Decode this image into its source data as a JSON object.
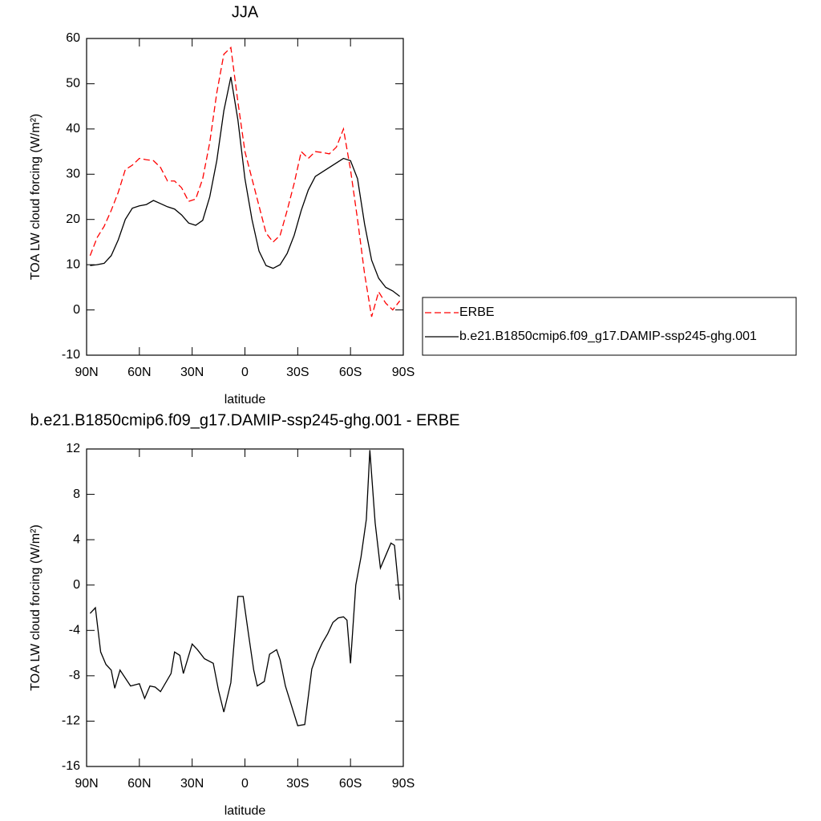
{
  "chart_data": [
    {
      "type": "line",
      "title": "JJA",
      "xlabel": "latitude",
      "ylabel": "TOA LW cloud forcing (W/m²)",
      "xlim": [
        90,
        -90
      ],
      "xticks": [
        {
          "value": 90,
          "label": "90N"
        },
        {
          "value": 60,
          "label": "60N"
        },
        {
          "value": 30,
          "label": "30N"
        },
        0,
        {
          "value": -30,
          "label": "30S"
        },
        {
          "value": -60,
          "label": "60S"
        },
        {
          "value": -90,
          "label": "90S"
        }
      ],
      "ylim": [
        -10,
        60
      ],
      "yticks": [
        -10,
        0,
        10,
        20,
        30,
        40,
        50,
        60
      ],
      "legend": "right",
      "x": [
        88,
        84,
        80,
        76,
        72,
        68,
        64,
        60,
        56,
        52,
        48,
        44,
        40,
        36,
        32,
        28,
        24,
        20,
        16,
        12,
        8,
        4,
        0,
        -4,
        -8,
        -12,
        -16,
        -20,
        -24,
        -28,
        -32,
        -36,
        -40,
        -44,
        -48,
        -52,
        -56,
        -60,
        -64,
        -68,
        -72,
        -76,
        -80,
        -84,
        -88
      ],
      "series": [
        {
          "name": "ERBE",
          "color": "#ff0000",
          "linestyle": "dashed",
          "values": [
            12,
            16,
            18.5,
            22,
            26,
            31,
            32,
            33.5,
            33.2,
            33,
            31.5,
            28.5,
            28.5,
            27,
            24,
            24.5,
            29,
            37,
            48,
            56.5,
            58,
            46,
            35,
            29,
            23,
            17,
            15,
            16.5,
            22,
            28,
            35,
            33.5,
            35,
            34.8,
            34.5,
            36,
            40,
            31,
            20,
            8,
            -1.5,
            4,
            1.5,
            0,
            2
          ]
        },
        {
          "name": "b.e21.B1850cmip6.f09_g17.DAMIP-ssp245-ghg.001",
          "color": "#000000",
          "linestyle": "solid",
          "values": [
            9.8,
            10,
            10.3,
            12,
            15.5,
            20,
            22.5,
            23,
            23.3,
            24.2,
            23.5,
            22.8,
            22.3,
            21,
            19.2,
            18.7,
            19.8,
            25,
            33,
            44,
            51.5,
            42,
            29,
            20,
            13,
            9.8,
            9.2,
            10,
            12.5,
            16.5,
            22,
            26.5,
            29.5,
            30.5,
            31.5,
            32.5,
            33.5,
            33,
            29,
            19,
            11,
            7,
            5,
            4.2,
            3
          ]
        }
      ]
    },
    {
      "type": "line",
      "title": "b.e21.B1850cmip6.f09_g17.DAMIP-ssp245-ghg.001 - ERBE",
      "xlabel": "latitude",
      "ylabel": "TOA LW cloud forcing (W/m²)",
      "xlim": [
        90,
        -90
      ],
      "xticks": [
        {
          "value": 90,
          "label": "90N"
        },
        {
          "value": 60,
          "label": "60N"
        },
        {
          "value": 30,
          "label": "30N"
        },
        0,
        {
          "value": -30,
          "label": "30S"
        },
        {
          "value": -60,
          "label": "60S"
        },
        {
          "value": -90,
          "label": "90S"
        }
      ],
      "ylim": [
        -16,
        12
      ],
      "yticks": [
        -16,
        -12,
        -8,
        -4,
        0,
        4,
        8,
        12
      ],
      "x": [
        88,
        85,
        82,
        79,
        76,
        74,
        71,
        65,
        60,
        57,
        54,
        51,
        48,
        42,
        40,
        37,
        35,
        30,
        27,
        23,
        18,
        15,
        12,
        8,
        4,
        1,
        -2,
        -5,
        -7,
        -11,
        -14,
        -18,
        -20,
        -23,
        -30,
        -34,
        -38,
        -41,
        -44,
        -47,
        -50,
        -53,
        -56,
        -58,
        -60,
        -63,
        -66,
        -69,
        -71,
        -74,
        -77,
        -80,
        -83,
        -85,
        -88
      ],
      "series": [
        {
          "color": "#000000",
          "linestyle": "solid",
          "values": [
            -2.5,
            -2,
            -5.9,
            -7,
            -7.5,
            -9.1,
            -7.5,
            -8.9,
            -8.7,
            -10,
            -8.9,
            -9,
            -9.4,
            -7.8,
            -5.9,
            -6.2,
            -7.8,
            -5.2,
            -5.7,
            -6.5,
            -6.9,
            -9.3,
            -11.2,
            -8.6,
            -1,
            -1,
            -4.3,
            -7.5,
            -8.9,
            -8.5,
            -6.1,
            -5.7,
            -6.6,
            -8.9,
            -12.4,
            -12.3,
            -7.4,
            -6.1,
            -5.1,
            -4.3,
            -3.3,
            -2.9,
            -2.8,
            -3.1,
            -6.9,
            0,
            2.5,
            5.8,
            11.9,
            5.5,
            1.5,
            2.6,
            3.7,
            3.5,
            -1.3
          ]
        }
      ]
    }
  ]
}
